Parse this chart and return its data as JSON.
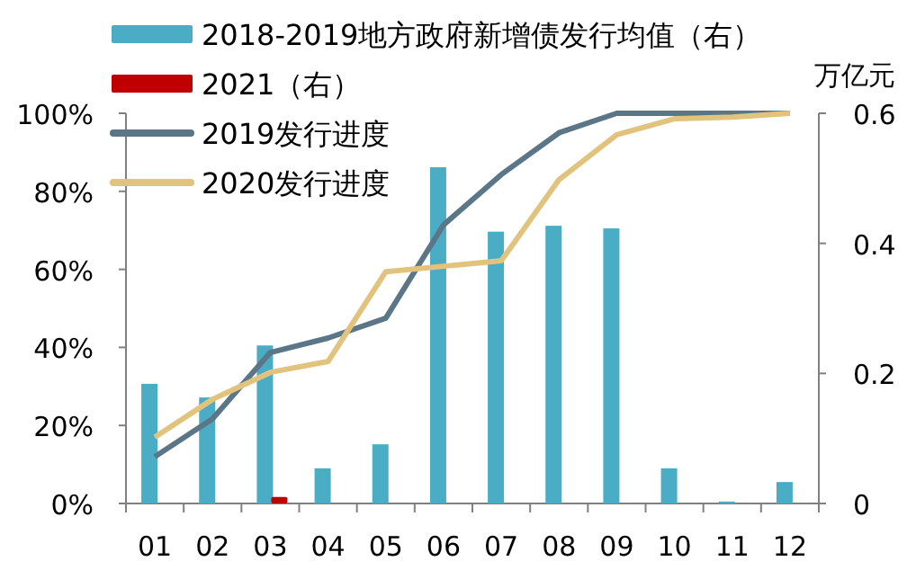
{
  "chart_data": {
    "type": "bar",
    "categories": [
      "01",
      "02",
      "03",
      "04",
      "05",
      "06",
      "07",
      "08",
      "09",
      "10",
      "11",
      "12"
    ],
    "series": [
      {
        "name": "2018-2019地方政府新增债发行均值（右）",
        "axis": "y2",
        "color": "#4bacc6",
        "values": [
          0.184,
          0.163,
          0.243,
          0.054,
          0.091,
          0.517,
          0.418,
          0.427,
          0.423,
          0.054,
          0.003,
          0.033
        ]
      },
      {
        "name": "2021（右）",
        "axis": "y2",
        "color": "#c00000",
        "values": [
          null,
          null,
          0.01,
          null,
          null,
          null,
          null,
          null,
          null,
          null,
          null,
          null
        ]
      },
      {
        "name": "2019发行进度",
        "type": "line",
        "color": "#5b7686",
        "values": [
          12,
          21.7,
          38.7,
          42.4,
          47.5,
          71.4,
          84.3,
          95,
          100,
          100,
          100,
          100
        ]
      },
      {
        "name": "2020发行进度",
        "type": "line",
        "color": "#e2c37e",
        "values": [
          17,
          26.7,
          33.6,
          36.4,
          59.4,
          60.8,
          62.2,
          83,
          94.5,
          98.6,
          99,
          100
        ]
      }
    ],
    "ylim": [
      0,
      100
    ],
    "yticks": [
      {
        "value": 0,
        "label": "0%"
      },
      {
        "value": 20,
        "label": "20%"
      },
      {
        "value": 40,
        "label": "40%"
      },
      {
        "value": 60,
        "label": "60%"
      },
      {
        "value": 80,
        "label": "80%"
      },
      {
        "value": 100,
        "label": "100%"
      }
    ],
    "y2lim": [
      0,
      0.6
    ],
    "y2ticks": [
      {
        "value": 0,
        "label": "0"
      },
      {
        "value": 0.2,
        "label": "0.2"
      },
      {
        "value": 0.4,
        "label": "0.4"
      },
      {
        "value": 0.6,
        "label": "0.6"
      }
    ],
    "y2label": "万亿元",
    "legend": "top left",
    "grid": false
  }
}
